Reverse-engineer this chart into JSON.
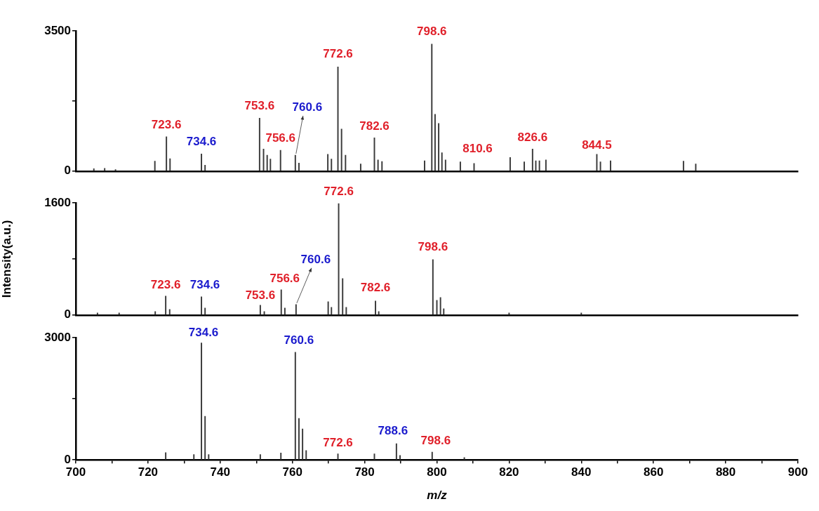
{
  "chart_data": [
    {
      "type": "bar",
      "color": "#3a3a3a",
      "x": [
        705,
        708,
        711,
        721.9,
        725.1,
        726.1,
        734.8,
        735.8,
        750.9,
        752.0,
        753.0,
        753.9,
        756.7,
        760.8,
        761.8,
        769.8,
        770.8,
        772.6,
        773.6,
        774.7,
        778.9,
        782.7,
        783.7,
        784.8,
        796.6,
        798.6,
        799.5,
        800.5,
        801.4,
        802.4,
        806.5,
        810.3,
        820.3,
        824.2,
        826.5,
        827.4,
        828.4,
        830.2,
        844.3,
        845.3,
        848.1,
        868.3,
        871.7
      ],
      "values": [
        60,
        70,
        40,
        250,
        860,
        310,
        430,
        150,
        1320,
        550,
        400,
        300,
        520,
        400,
        200,
        420,
        300,
        2600,
        1050,
        400,
        180,
        830,
        280,
        240,
        260,
        3170,
        1420,
        1190,
        460,
        280,
        230,
        190,
        340,
        230,
        550,
        260,
        260,
        280,
        420,
        230,
        260,
        250,
        180
      ],
      "xlim": [
        700,
        900
      ],
      "ylim": [
        0,
        3500
      ],
      "yticks": [
        0,
        {
          "value": 1750,
          "label": null
        },
        3500
      ],
      "tick_labels": "y",
      "annotations": [
        {
          "text": "723.6",
          "x": 725.1,
          "y": 860
        },
        {
          "text": "734.6",
          "x": 734.8,
          "y": 430
        },
        {
          "text": "753.6",
          "x": 750.9,
          "y": 1320
        },
        {
          "text": "756.6",
          "x": 756.7,
          "y": 520
        },
        {
          "text": "760.6",
          "x": 760.8,
          "y": 400
        },
        {
          "text": "772.6",
          "x": 772.6,
          "y": 2600
        },
        {
          "text": "782.6",
          "x": 782.7,
          "y": 830
        },
        {
          "text": "798.6",
          "x": 798.6,
          "y": 3170
        },
        {
          "text": "810.6",
          "x": 810.3,
          "y": 190
        },
        {
          "text": "826.6",
          "x": 826.5,
          "y": 550
        },
        {
          "text": "844.5",
          "x": 844.3,
          "y": 420
        }
      ]
    },
    {
      "type": "bar",
      "color": "#3a3a3a",
      "ylabel": "Intensity(a.u.)",
      "x": [
        706,
        712,
        722.0,
        724.9,
        726.0,
        734.8,
        735.8,
        751.1,
        752.2,
        756.9,
        757.9,
        761.0,
        769.9,
        770.8,
        772.8,
        773.9,
        774.9,
        783.0,
        783.9,
        798.9,
        800.0,
        801.0,
        801.9,
        820,
        840
      ],
      "values": [
        30,
        30,
        50,
        270,
        80,
        260,
        100,
        140,
        50,
        360,
        100,
        150,
        190,
        110,
        1590,
        520,
        110,
        200,
        50,
        790,
        210,
        250,
        90,
        30,
        30
      ],
      "xlim": [
        700,
        900
      ],
      "ylim": [
        0,
        1600
      ],
      "yticks": [
        0,
        {
          "value": 800,
          "label": null
        },
        1600
      ],
      "tick_labels": "y",
      "annotations": [
        {
          "text": "723.6",
          "x": 724.9,
          "y": 270
        },
        {
          "text": "734.6",
          "x": 734.8,
          "y": 260
        },
        {
          "text": "753.6",
          "x": 751.1,
          "y": 140
        },
        {
          "text": "756.6",
          "x": 756.9,
          "y": 360
        },
        {
          "text": "760.6",
          "x": 761.0,
          "y": 150
        },
        {
          "text": "772.6",
          "x": 772.8,
          "y": 1590
        },
        {
          "text": "782.6",
          "x": 783.0,
          "y": 200
        },
        {
          "text": "798.6",
          "x": 798.9,
          "y": 790
        }
      ]
    },
    {
      "type": "bar",
      "color": "#3a3a3a",
      "xlabel": "m/z",
      "x": [
        724.9,
        732.7,
        734.8,
        735.8,
        736.8,
        751.1,
        756.8,
        760.8,
        761.8,
        762.8,
        763.8,
        772.6,
        782.7,
        788.8,
        789.8,
        798.7,
        807.6
      ],
      "values": [
        180,
        130,
        2870,
        1070,
        130,
        130,
        170,
        2640,
        1020,
        760,
        230,
        150,
        150,
        400,
        110,
        190,
        60
      ],
      "xlim": [
        700,
        900
      ],
      "ylim": [
        0,
        3000
      ],
      "xticks": [
        700,
        {
          "value": 710,
          "label": null
        },
        720,
        {
          "value": 730,
          "label": null
        },
        740,
        {
          "value": 750,
          "label": null
        },
        760,
        {
          "value": 770,
          "label": null
        },
        780,
        {
          "value": 790,
          "label": null
        },
        800,
        {
          "value": 810,
          "label": null
        },
        820,
        {
          "value": 830,
          "label": null
        },
        840,
        {
          "value": 850,
          "label": null
        },
        860,
        {
          "value": 870,
          "label": null
        },
        880,
        {
          "value": 890,
          "label": null
        },
        900
      ],
      "yticks": [
        0,
        {
          "value": 1500,
          "label": null
        },
        3000
      ],
      "annotations": [
        {
          "text": "734.6",
          "x": 734.8,
          "y": 2870
        },
        {
          "text": "760.6",
          "x": 760.8,
          "y": 2640
        },
        {
          "text": "772.6",
          "x": 772.6,
          "y": 150
        },
        {
          "text": "788.6",
          "x": 788.8,
          "y": 400
        },
        {
          "text": "798.6",
          "x": 798.7,
          "y": 190
        }
      ]
    }
  ]
}
